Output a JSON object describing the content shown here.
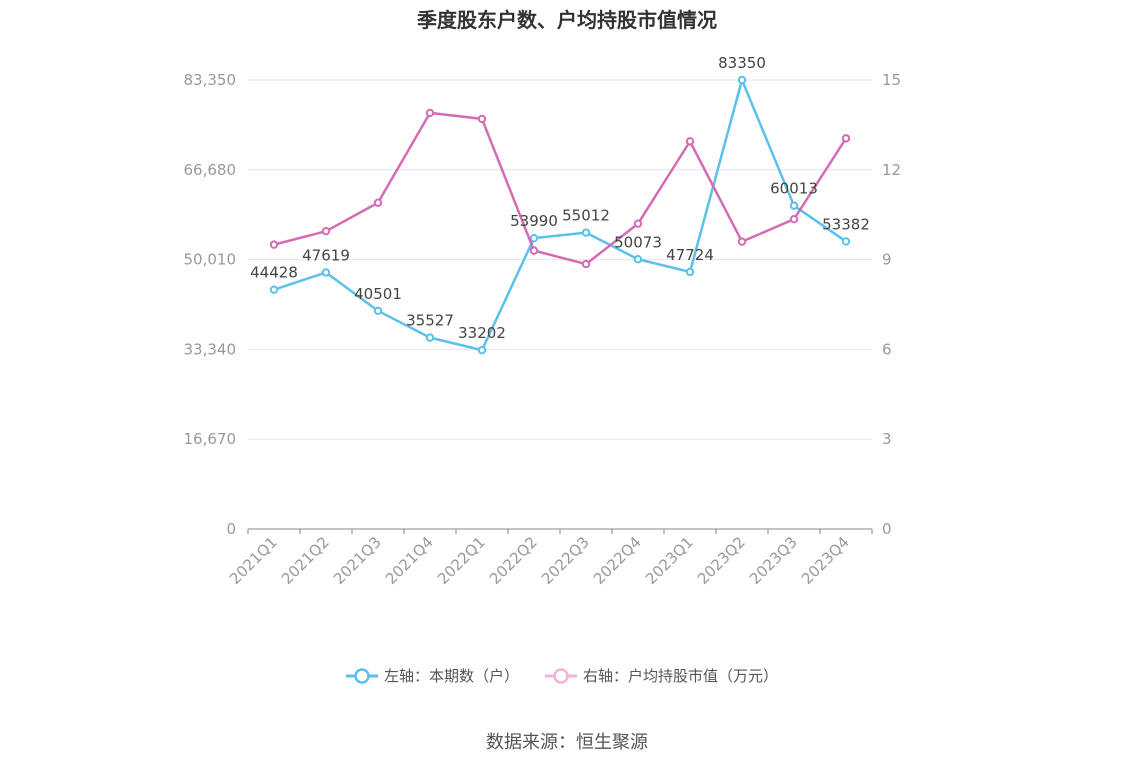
{
  "chart_data": {
    "type": "line",
    "title": "季度股东户数、户均持股市值情况",
    "categories": [
      "2021Q1",
      "2021Q2",
      "2021Q3",
      "2021Q4",
      "2022Q1",
      "2022Q2",
      "2022Q3",
      "2022Q4",
      "2023Q1",
      "2023Q2",
      "2023Q3",
      "2023Q4"
    ],
    "left_axis": {
      "ticks": [
        "0",
        "16,670",
        "33,340",
        "50,010",
        "66,680",
        "83,350"
      ],
      "ylim": [
        0,
        83350
      ]
    },
    "right_axis": {
      "ticks": [
        "0",
        "3",
        "6",
        "9",
        "12",
        "15"
      ],
      "ylim": [
        0,
        15
      ]
    },
    "series": [
      {
        "name": "左轴：本期数（户）",
        "axis": "left",
        "color": "#5bc0eb",
        "values": [
          44428,
          47619,
          40501,
          35527,
          33202,
          53990,
          55012,
          50073,
          47724,
          83350,
          60013,
          53382
        ],
        "labels": [
          "44428",
          "47619",
          "40501",
          "35527",
          "33202",
          "53990",
          "55012",
          "50073",
          "47724",
          "83350",
          "60013",
          "53382"
        ]
      },
      {
        "name": "右轴：户均持股市值（万元）",
        "axis": "right",
        "color": "#d46bb3",
        "values": [
          9.5,
          9.95,
          10.9,
          13.9,
          13.7,
          9.3,
          8.85,
          10.2,
          12.95,
          9.6,
          10.35,
          13.05
        ]
      }
    ],
    "grid": true,
    "legend_position": "bottom-center"
  },
  "source": "数据来源：恒生聚源"
}
